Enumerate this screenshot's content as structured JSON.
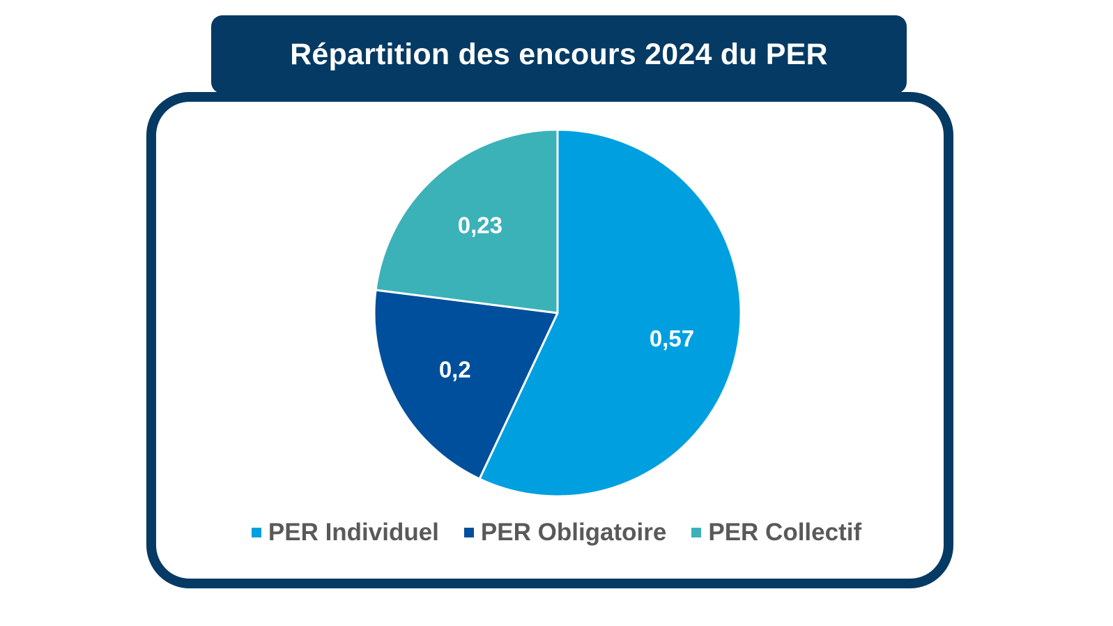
{
  "title": "Répartition des encours 2024 du PER",
  "colors": {
    "title_bg": "#043a63",
    "frame_border": "#043a63",
    "legend_text": "#595959"
  },
  "chart_data": {
    "type": "pie",
    "title": "Répartition des encours 2024 du PER",
    "categories": [
      "PER Individuel",
      "PER Obligatoire",
      "PER Collectif"
    ],
    "values": [
      0.57,
      0.2,
      0.23
    ],
    "value_labels": [
      "0,57",
      "0,2",
      "0,23"
    ],
    "colors": [
      "#009fe0",
      "#004f9c",
      "#3bb2b8"
    ],
    "legend_position": "bottom",
    "start_angle": "12 o'clock",
    "direction": "clockwise"
  }
}
